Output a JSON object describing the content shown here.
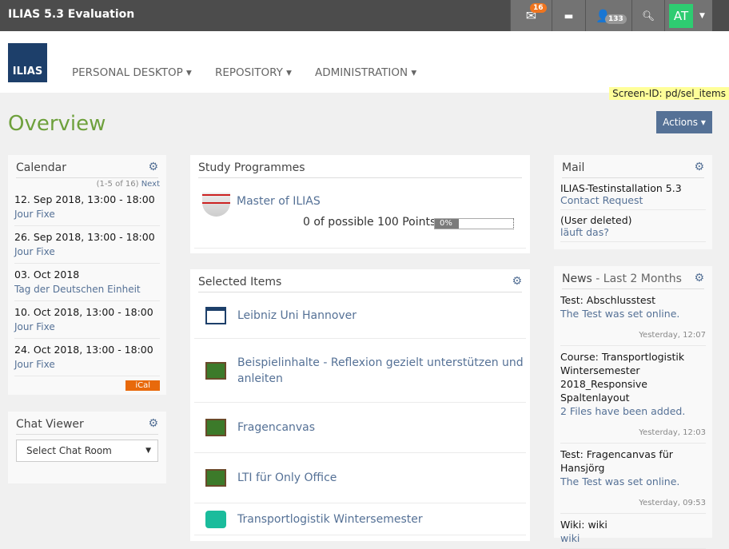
{
  "topbar": {
    "title": "ILIAS 5.3 Evaluation",
    "mail_count": "16",
    "users_count": "133",
    "avatar": "AT"
  },
  "nav": {
    "logo": "ILIAS",
    "items": [
      "PERSONAL DESKTOP",
      "REPOSITORY",
      "ADMINISTRATION"
    ],
    "screen_id": "Screen-ID: pd/sel_items"
  },
  "page": {
    "title": "Overview",
    "actions": "Actions"
  },
  "calendar": {
    "title": "Calendar",
    "pager": "(1-5 of 16)",
    "next": "Next",
    "ical": "iCal",
    "events": [
      {
        "date": "12. Sep 2018, 13:00 - 18:00",
        "name": "Jour Fixe"
      },
      {
        "date": "26. Sep 2018, 13:00 - 18:00",
        "name": "Jour Fixe"
      },
      {
        "date": "03. Oct 2018",
        "name": "Tag der Deutschen Einheit"
      },
      {
        "date": "10. Oct 2018, 13:00 - 18:00",
        "name": "Jour Fixe"
      },
      {
        "date": "24. Oct 2018, 13:00 - 18:00",
        "name": "Jour Fixe"
      }
    ]
  },
  "chat": {
    "title": "Chat Viewer",
    "select": "Select Chat Room"
  },
  "study": {
    "title": "Study Programmes",
    "name": "Master of ILIAS",
    "points": "0 of possible 100 Points",
    "progress": 0,
    "progress_label": "0%"
  },
  "selected": {
    "title": "Selected Items",
    "items": [
      {
        "icon": "folder",
        "label": "Leibniz Uni Hannover"
      },
      {
        "icon": "blackboard",
        "label": "Beispielinhalte - Reflexion gezielt unterstützen und anleiten"
      },
      {
        "icon": "blackboard",
        "label": "Fragencanvas"
      },
      {
        "icon": "blackboard",
        "label": "LTI für Only Office"
      },
      {
        "icon": "course",
        "label": "Transportlogistik Wintersemester"
      }
    ]
  },
  "mail": {
    "title": "Mail",
    "items": [
      {
        "from": "ILIAS-Testinstallation 5.3",
        "subject": "Contact Request"
      },
      {
        "from": "(User deleted)",
        "subject": "läuft das?"
      }
    ]
  },
  "news": {
    "title": "News",
    "subtitle": " - Last 2 Months",
    "items": [
      {
        "head": "Test: Abschlusstest",
        "text": "The Test was set online.",
        "time": "Yesterday, 12:07"
      },
      {
        "head": "Course: Transportlogistik Wintersemester 2018_Responsive Spaltenlayout",
        "text": "2 Files have been added.",
        "time": "Yesterday, 12:03"
      },
      {
        "head": "Test: Fragencanvas für Hansjörg",
        "text": "The Test was set online.",
        "time": "Yesterday, 09:53"
      },
      {
        "head": "Wiki: wiki",
        "text": "wiki",
        "time": ""
      }
    ]
  }
}
